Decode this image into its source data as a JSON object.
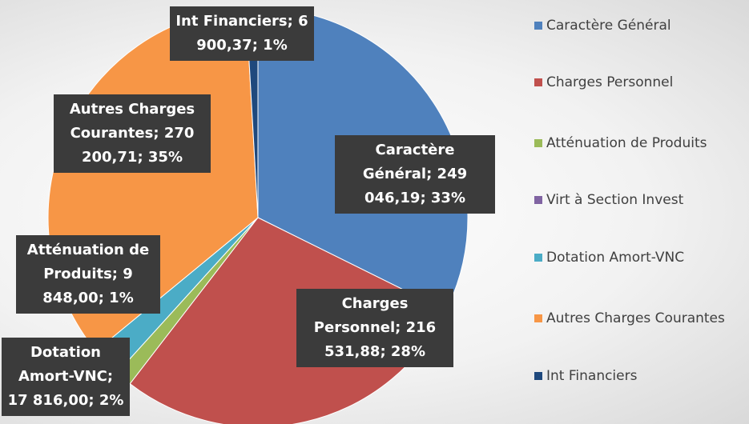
{
  "chart_data": {
    "type": "pie",
    "categories": [
      "Caractère Général",
      "Charges Personnel",
      "Atténuation de Produits",
      "Virt à Section Invest",
      "Dotation Amort-VNC",
      "Autres Charges Courantes",
      "Int Financiers"
    ],
    "values": [
      249046.19,
      216531.88,
      9848.0,
      0,
      17816.0,
      270200.71,
      6900.37
    ],
    "value_labels": [
      "Caractère Général; 249 046,19; 33%",
      "Charges Personnel; 216 531,88; 28%",
      "Atténuation de Produits; 9 848,00; 1%",
      null,
      "Dotation Amort-VNC; 17 816,00; 2%",
      "Autres Charges Courantes; 270 200,71; 35%",
      "Int Financiers; 6 900,37; 1%"
    ],
    "colors": [
      "#4f81bd",
      "#c0504d",
      "#9bbb59",
      "#8064a2",
      "#4bacc6",
      "#f79646",
      "#1f497d"
    ],
    "legend": "right"
  }
}
